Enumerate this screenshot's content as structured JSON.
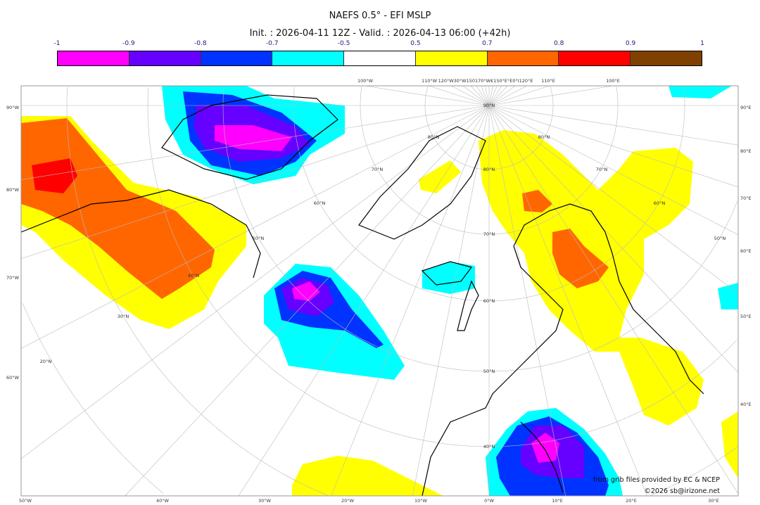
{
  "header": {
    "title": "NAEFS 0.5° - EFI MSLP",
    "subtitle": "Init. : 2026-04-11 12Z - Valid. : 2026-04-13 06:00 (+42h)"
  },
  "colorbar": {
    "tick_labels": [
      "-1",
      "-0.9",
      "-0.8",
      "-0.7",
      "-0.5",
      "0.5",
      "0.7",
      "0.8",
      "0.9",
      "1"
    ],
    "colors": [
      "#ff00ff",
      "#6600ff",
      "#0033ff",
      "#00ffff",
      "#ffffff",
      "#ffff00",
      "#ff6600",
      "#ff0000",
      "#804000"
    ]
  },
  "map": {
    "top_labels": [
      "100°W",
      "110°W",
      "120°W30°W150170°W€150°E°E0°I120°E",
      "110°E",
      "100°E"
    ],
    "bottom_labels": [
      "50°W",
      "40°W",
      "30°W",
      "20°W",
      "10°W",
      "0°W",
      "10°E",
      "20°E",
      "30°E"
    ],
    "left_labels": [
      "90°W",
      "80°W",
      "70°W",
      "60°W"
    ],
    "right_labels": [
      "90°E",
      "80°E",
      "70°E",
      "60°E",
      "50°E",
      "40°E"
    ],
    "lat_labels": [
      "90°N",
      "80°N",
      "70°N",
      "60°N",
      "50°N",
      "40°N",
      "30°N",
      "20°N",
      "80°N",
      "70°N",
      "60°N",
      "50°N",
      "40°N",
      "80°N",
      "70°N",
      "60°N",
      "50°N"
    ],
    "credit": "from grib files provided by EC & NCEP",
    "copyright": "©2026 sb@irizone.net"
  }
}
